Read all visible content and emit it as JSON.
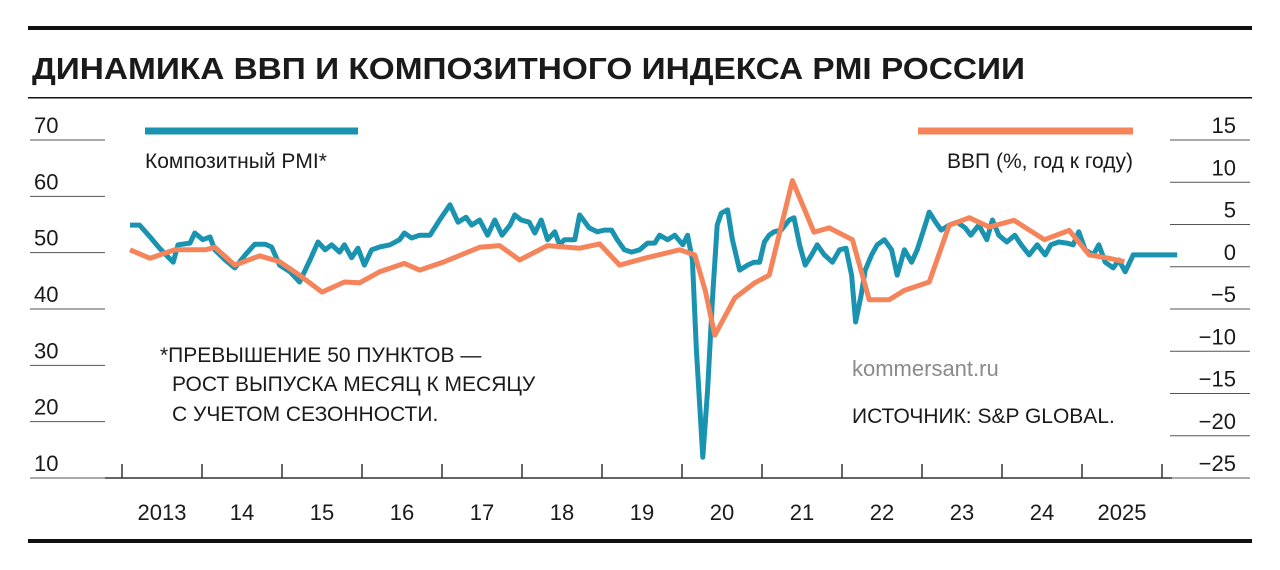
{
  "chart_data": {
    "type": "line",
    "title": "ДИНАМИКА ВВП И КОМПОЗИТНОГО ИНДЕКСА PMI РОССИИ",
    "annotations": [
      "*ПРЕВЫШЕНИЕ 50 ПУНКТОВ —",
      "РОСТ ВЫПУСКА МЕСЯЦ К МЕСЯЦУ",
      "С УЧЕТОМ СЕЗОННОСТИ."
    ],
    "watermark": "kommersant.ru",
    "source": "ИСТОЧНИК: S&P GLOBAL.",
    "xlim": [
      2013,
      2026.2
    ],
    "xticks": [
      2013,
      2014,
      2015,
      2016,
      2017,
      2018,
      2019,
      2020,
      2021,
      2022,
      2023,
      2024,
      2025,
      2026
    ],
    "xlabels": [
      {
        "value": 2013.5,
        "label": "2013"
      },
      {
        "value": 2014.5,
        "label": "14"
      },
      {
        "value": 2015.5,
        "label": "15"
      },
      {
        "value": 2016.5,
        "label": "16"
      },
      {
        "value": 2017.5,
        "label": "17"
      },
      {
        "value": 2018.5,
        "label": "18"
      },
      {
        "value": 2019.5,
        "label": "19"
      },
      {
        "value": 2020.5,
        "label": "20"
      },
      {
        "value": 2021.5,
        "label": "21"
      },
      {
        "value": 2022.5,
        "label": "22"
      },
      {
        "value": 2023.5,
        "label": "23"
      },
      {
        "value": 2024.5,
        "label": "24"
      },
      {
        "value": 2025.5,
        "label": "2025"
      }
    ],
    "ylim": [
      10,
      70
    ],
    "yticks": [
      10,
      20,
      30,
      40,
      50,
      60,
      70
    ],
    "y2lim": [
      -25,
      15
    ],
    "y2ticks": [
      {
        "value": -25,
        "label": "−25"
      },
      {
        "value": -20,
        "label": "−20"
      },
      {
        "value": -15,
        "label": "−15"
      },
      {
        "value": -10,
        "label": "−10"
      },
      {
        "value": -5,
        "label": "−5"
      },
      0,
      5,
      10,
      15
    ],
    "series": [
      {
        "name": "Композитный PMI*",
        "color": "#1a93b0",
        "x": [
          2013.1,
          2013.22,
          2013.35,
          2013.47,
          2013.64,
          2013.7,
          2013.85,
          2013.91,
          2014.01,
          2014.1,
          2014.16,
          2014.29,
          2014.41,
          2014.54,
          2014.66,
          2014.79,
          2014.87,
          2014.97,
          2015.1,
          2015.22,
          2015.35,
          2015.45,
          2015.54,
          2015.62,
          2015.72,
          2015.78,
          2015.87,
          2015.95,
          2016.03,
          2016.12,
          2016.22,
          2016.35,
          2016.47,
          2016.53,
          2016.62,
          2016.72,
          2016.85,
          2016.97,
          2017.1,
          2017.2,
          2017.3,
          2017.37,
          2017.47,
          2017.57,
          2017.66,
          2017.75,
          2017.85,
          2017.91,
          2017.99,
          2018.09,
          2018.16,
          2018.24,
          2018.32,
          2018.41,
          2018.47,
          2018.53,
          2018.66,
          2018.72,
          2018.84,
          2018.94,
          2019.03,
          2019.12,
          2019.19,
          2019.28,
          2019.37,
          2019.47,
          2019.57,
          2019.66,
          2019.72,
          2019.82,
          2019.91,
          2020.01,
          2020.07,
          2020.13,
          2020.18,
          2020.26,
          2020.32,
          2020.38,
          2020.44,
          2020.49,
          2020.57,
          2020.63,
          2020.72,
          2020.82,
          2020.9,
          2020.97,
          2021.03,
          2021.09,
          2021.15,
          2021.24,
          2021.34,
          2021.4,
          2021.47,
          2021.54,
          2021.62,
          2021.69,
          2021.78,
          2021.88,
          2021.97,
          2022.05,
          2022.12,
          2022.17,
          2022.24,
          2022.29,
          2022.37,
          2022.44,
          2022.53,
          2022.62,
          2022.69,
          2022.78,
          2022.87,
          2022.94,
          2023.02,
          2023.09,
          2023.17,
          2023.24,
          2023.34,
          2023.44,
          2023.54,
          2023.61,
          2023.71,
          2023.81,
          2023.88,
          2023.96,
          2024.06,
          2024.16,
          2024.24,
          2024.34,
          2024.44,
          2024.54,
          2024.61,
          2024.71,
          2024.81,
          2024.89,
          2024.96,
          2025.04,
          2025.14,
          2025.21,
          2025.29,
          2025.39,
          2025.46,
          2025.54,
          2025.64,
          2026.19
        ],
        "values": [
          54.9,
          54.9,
          52.8,
          50.8,
          48.3,
          51.4,
          51.7,
          53.5,
          52.3,
          52.8,
          50.5,
          48.7,
          47.3,
          49.6,
          51.5,
          51.5,
          51.0,
          47.8,
          46.6,
          44.8,
          48.7,
          51.9,
          50.5,
          51.4,
          50.1,
          51.4,
          49.1,
          50.8,
          47.8,
          50.5,
          51.0,
          51.4,
          52.3,
          53.5,
          52.6,
          53.1,
          53.1,
          55.8,
          58.5,
          55.4,
          56.3,
          54.9,
          55.8,
          53.1,
          55.8,
          53.1,
          54.9,
          56.7,
          55.8,
          55.4,
          53.5,
          55.8,
          52.3,
          53.7,
          51.4,
          52.3,
          52.3,
          56.7,
          54.4,
          53.7,
          54.0,
          54.0,
          52.3,
          50.5,
          50.1,
          50.5,
          51.7,
          51.7,
          53.1,
          52.3,
          53.1,
          51.4,
          53.1,
          48.7,
          32.7,
          13.7,
          25.6,
          41.6,
          54.9,
          57.0,
          57.6,
          52.3,
          46.9,
          47.8,
          48.3,
          48.3,
          51.9,
          53.1,
          53.7,
          54.0,
          55.8,
          56.2,
          51.4,
          47.8,
          49.6,
          51.4,
          49.6,
          48.3,
          50.5,
          50.8,
          46.0,
          37.7,
          42.5,
          46.9,
          49.6,
          51.4,
          52.3,
          50.5,
          46.0,
          50.5,
          48.3,
          50.5,
          54.0,
          57.2,
          55.4,
          54.0,
          54.9,
          55.4,
          54.4,
          53.1,
          54.9,
          52.3,
          55.8,
          53.1,
          51.9,
          53.1,
          51.4,
          49.6,
          51.4,
          49.6,
          51.4,
          51.9,
          51.7,
          51.4,
          53.7,
          50.5,
          49.6,
          51.4,
          48.3,
          47.3,
          48.7,
          46.6,
          49.6,
          49.6
        ]
      },
      {
        "name": "ВВП (%, год к году)",
        "color": "#f5845a",
        "axis": "y2",
        "x": [
          2013.1,
          2013.35,
          2013.66,
          2014.04,
          2014.16,
          2014.41,
          2014.72,
          2014.97,
          2015.22,
          2015.5,
          2015.78,
          2015.97,
          2016.22,
          2016.53,
          2016.72,
          2017.03,
          2017.47,
          2017.72,
          2017.97,
          2018.32,
          2018.72,
          2018.97,
          2019.22,
          2019.53,
          2019.97,
          2020.16,
          2020.29,
          2020.41,
          2020.66,
          2020.91,
          2021.09,
          2021.38,
          2021.65,
          2021.84,
          2022.13,
          2022.34,
          2022.59,
          2022.78,
          2023.09,
          2023.34,
          2023.59,
          2023.84,
          2024.15,
          2024.53,
          2024.84,
          2025.09,
          2025.34,
          2025.53
        ],
        "values": [
          2.0,
          1.0,
          2.0,
          2.0,
          2.3,
          0.2,
          1.3,
          0.6,
          -1.0,
          -3.0,
          -1.8,
          -1.9,
          -0.6,
          0.4,
          -0.4,
          0.6,
          2.3,
          2.5,
          0.8,
          2.5,
          2.2,
          2.7,
          0.2,
          1.0,
          2.0,
          1.4,
          -2.8,
          -8.1,
          -3.7,
          -1.9,
          -1.0,
          10.2,
          4.1,
          4.6,
          3.2,
          -3.9,
          -3.9,
          -2.8,
          -1.8,
          4.9,
          5.8,
          4.7,
          5.5,
          3.2,
          4.3,
          1.4,
          1.0,
          0.6
        ]
      }
    ]
  }
}
